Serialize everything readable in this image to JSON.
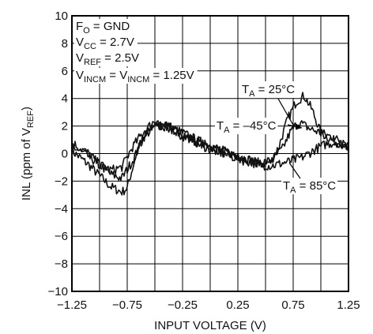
{
  "chart_data": {
    "type": "line",
    "title": "",
    "xlabel": "INPUT VOLTAGE (V)",
    "ylabel": {
      "main": "INL (ppm of V",
      "sub": "REF",
      "end": ")"
    },
    "xlim": [
      -1.25,
      1.25
    ],
    "ylim": [
      -10,
      10
    ],
    "grid": true,
    "x_ticks": [
      -1.25,
      -1.0,
      -0.75,
      -0.5,
      -0.25,
      0,
      0.25,
      0.5,
      0.75,
      1.0,
      1.25
    ],
    "x_tick_labels": [
      "-1.25",
      "",
      "-0.75",
      "",
      "-0.25",
      "",
      "0.25",
      "",
      "0.75",
      "",
      "1.25"
    ],
    "y_ticks": [
      -10,
      -8,
      -6,
      -4,
      -2,
      0,
      2,
      4,
      6,
      8,
      10
    ],
    "y_tick_labels": [
      "-10",
      "-8",
      "-6",
      "-4",
      "-2",
      "0",
      "2",
      "4",
      "6",
      "8",
      "10"
    ],
    "conditions": [
      {
        "main": "F",
        "sub": "O",
        "rest": " = GND"
      },
      {
        "main": "V",
        "sub": "CC",
        "rest": " = 2.7V"
      },
      {
        "main": "V",
        "sub": "REF",
        "rest": " = 2.5V"
      },
      {
        "main": "V",
        "sub": "INCM",
        "rest": " = V",
        "sub2": "INCM",
        "rest2": " = 1.25V"
      }
    ],
    "series": [
      {
        "name": {
          "main": "T",
          "sub": "A",
          "rest": " = 25°C"
        },
        "x": [
          -1.25,
          -1.1,
          -1.0,
          -0.9,
          -0.8,
          -0.75,
          -0.65,
          -0.5,
          -0.4,
          -0.25,
          -0.1,
          0.0,
          0.15,
          0.3,
          0.45,
          0.55,
          0.62,
          0.7,
          0.78,
          0.85,
          0.92,
          1.0,
          1.1,
          1.25
        ],
        "y": [
          0.2,
          -0.8,
          -1.6,
          -2.4,
          -2.8,
          -2.5,
          0.5,
          2.2,
          1.9,
          1.3,
          0.8,
          0.5,
          0.0,
          -0.4,
          -0.8,
          -0.6,
          0.5,
          2.5,
          3.8,
          4.2,
          3.2,
          1.5,
          1.0,
          0.5
        ]
      },
      {
        "name": {
          "main": "T",
          "sub": "A",
          "rest": " = –45°C"
        },
        "x": [
          -1.25,
          -1.1,
          -1.0,
          -0.9,
          -0.8,
          -0.7,
          -0.6,
          -0.5,
          -0.4,
          -0.25,
          -0.1,
          0.0,
          0.15,
          0.3,
          0.45,
          0.55,
          0.65,
          0.72,
          0.8,
          0.9,
          1.0,
          1.1,
          1.25
        ],
        "y": [
          0.5,
          -0.2,
          -0.8,
          -1.5,
          -1.8,
          -0.5,
          1.2,
          2.0,
          2.1,
          1.5,
          0.9,
          0.6,
          0.1,
          -0.3,
          -0.7,
          -0.5,
          0.3,
          1.5,
          2.3,
          1.8,
          1.5,
          1.2,
          0.6
        ]
      },
      {
        "name": {
          "main": "T",
          "sub": "A",
          "rest": " = 85°C"
        },
        "x": [
          -1.25,
          -1.1,
          -1.0,
          -0.9,
          -0.8,
          -0.7,
          -0.6,
          -0.5,
          -0.4,
          -0.25,
          -0.1,
          0.0,
          0.15,
          0.3,
          0.45,
          0.55,
          0.65,
          0.75,
          0.85,
          0.95,
          1.05,
          1.15,
          1.25
        ],
        "y": [
          0.8,
          0.0,
          -0.8,
          -1.2,
          -1.0,
          0.5,
          1.6,
          2.4,
          2.0,
          1.4,
          0.7,
          0.3,
          -0.1,
          -0.5,
          -0.8,
          -0.9,
          -0.7,
          -0.5,
          -0.2,
          0.3,
          0.7,
          0.8,
          0.5
        ]
      }
    ]
  }
}
